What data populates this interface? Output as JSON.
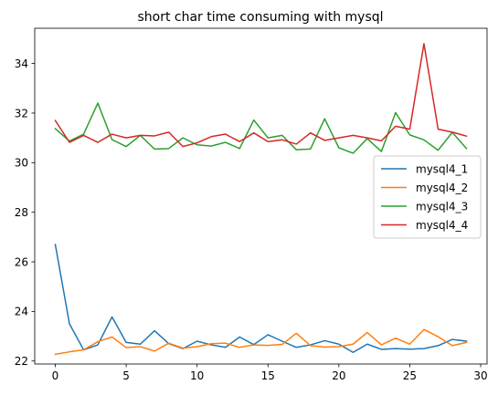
{
  "chart_data": {
    "type": "line",
    "title": "short char time consuming with mysql",
    "xlabel": "",
    "ylabel": "",
    "xlim": [
      -1.45,
      30.45
    ],
    "ylim": [
      21.88,
      35.42
    ],
    "x_ticks": [
      0,
      5,
      10,
      15,
      20,
      25,
      30
    ],
    "y_ticks": [
      22,
      24,
      26,
      28,
      30,
      32,
      34
    ],
    "legend_position": "center-right",
    "x": [
      0,
      1,
      2,
      3,
      4,
      5,
      6,
      7,
      8,
      9,
      10,
      11,
      12,
      13,
      14,
      15,
      16,
      17,
      18,
      19,
      20,
      21,
      22,
      23,
      24,
      25,
      26,
      27,
      28,
      29
    ],
    "series": [
      {
        "name": "mysql4_1",
        "color": "#1f77b4",
        "values": [
          26.7,
          23.5,
          22.45,
          22.65,
          23.78,
          22.75,
          22.68,
          23.22,
          22.7,
          22.5,
          22.8,
          22.65,
          22.55,
          22.97,
          22.66,
          23.06,
          22.8,
          22.55,
          22.65,
          22.82,
          22.68,
          22.35,
          22.68,
          22.47,
          22.5,
          22.48,
          22.5,
          22.62,
          22.87,
          22.8
        ]
      },
      {
        "name": "mysql4_2",
        "color": "#ff7f0e",
        "values": [
          22.27,
          22.37,
          22.45,
          22.78,
          22.97,
          22.54,
          22.58,
          22.4,
          22.72,
          22.52,
          22.58,
          22.7,
          22.72,
          22.55,
          22.65,
          22.63,
          22.67,
          23.12,
          22.62,
          22.56,
          22.58,
          22.68,
          23.15,
          22.65,
          22.92,
          22.68,
          23.27,
          22.98,
          22.62,
          22.75
        ]
      },
      {
        "name": "mysql4_3",
        "color": "#2ca02c",
        "values": [
          31.37,
          30.87,
          31.15,
          32.4,
          30.93,
          30.65,
          31.1,
          30.55,
          30.57,
          31.0,
          30.72,
          30.67,
          30.82,
          30.57,
          31.72,
          31.0,
          31.1,
          30.52,
          30.55,
          31.77,
          30.6,
          30.38,
          30.97,
          30.45,
          32.02,
          31.12,
          30.92,
          30.5,
          31.22,
          30.57
        ]
      },
      {
        "name": "mysql4_4",
        "color": "#d62728",
        "values": [
          31.7,
          30.82,
          31.1,
          30.82,
          31.15,
          31.0,
          31.1,
          31.08,
          31.23,
          30.65,
          30.8,
          31.05,
          31.15,
          30.85,
          31.2,
          30.85,
          30.92,
          30.75,
          31.2,
          30.9,
          31.0,
          31.1,
          31.0,
          30.88,
          31.47,
          31.35,
          34.8,
          31.35,
          31.23,
          31.07
        ]
      }
    ]
  }
}
